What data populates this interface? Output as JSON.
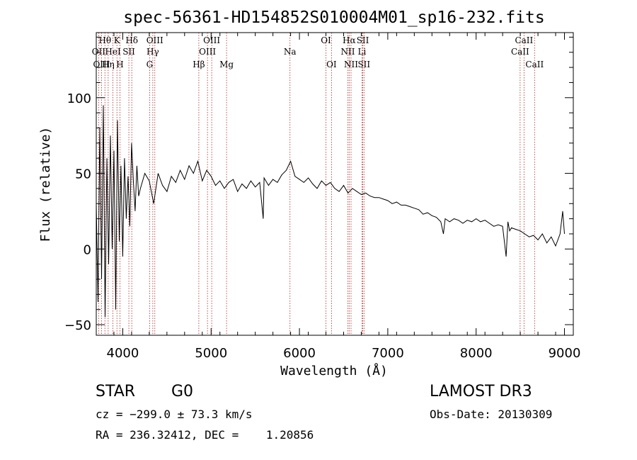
{
  "chart_data": {
    "type": "line",
    "title": "spec-56361-HD154852S010004M01_sp16-232.fits",
    "xlabel": "Wavelength (Å)",
    "ylabel": "Flux (relative)",
    "xlim": [
      3700,
      9100
    ],
    "ylim": [
      -57,
      143
    ],
    "xticks": [
      4000,
      5000,
      6000,
      7000,
      8000,
      9000
    ],
    "yticks": [
      -50,
      0,
      50,
      100
    ],
    "series": [
      {
        "name": "flux",
        "x": [
          3700,
          3720,
          3740,
          3760,
          3780,
          3800,
          3820,
          3840,
          3860,
          3880,
          3900,
          3920,
          3940,
          3960,
          3980,
          4000,
          4020,
          4040,
          4060,
          4080,
          4100,
          4120,
          4140,
          4160,
          4180,
          4200,
          4250,
          4300,
          4350,
          4400,
          4450,
          4500,
          4550,
          4600,
          4650,
          4700,
          4750,
          4800,
          4850,
          4900,
          4950,
          5000,
          5050,
          5100,
          5150,
          5200,
          5250,
          5300,
          5350,
          5400,
          5450,
          5500,
          5550,
          5590,
          5600,
          5650,
          5700,
          5750,
          5800,
          5850,
          5900,
          5950,
          6000,
          6050,
          6100,
          6150,
          6200,
          6250,
          6300,
          6350,
          6400,
          6450,
          6500,
          6550,
          6600,
          6650,
          6700,
          6750,
          6800,
          6850,
          6900,
          6950,
          7000,
          7050,
          7100,
          7150,
          7200,
          7250,
          7300,
          7350,
          7400,
          7450,
          7500,
          7550,
          7600,
          7630,
          7650,
          7700,
          7750,
          7800,
          7850,
          7900,
          7950,
          8000,
          8050,
          8100,
          8150,
          8200,
          8250,
          8300,
          8340,
          8360,
          8380,
          8400,
          8450,
          8500,
          8550,
          8600,
          8650,
          8700,
          8750,
          8800,
          8850,
          8900,
          8950,
          8980,
          9000
        ],
        "values": [
          30,
          -35,
          80,
          -20,
          95,
          -45,
          60,
          -10,
          75,
          0,
          65,
          -40,
          85,
          5,
          55,
          -5,
          60,
          20,
          48,
          15,
          70,
          45,
          25,
          55,
          35,
          40,
          50,
          45,
          30,
          50,
          42,
          38,
          48,
          44,
          52,
          46,
          55,
          50,
          58,
          45,
          52,
          48,
          42,
          45,
          40,
          44,
          46,
          38,
          43,
          40,
          45,
          41,
          44,
          20,
          47,
          42,
          46,
          44,
          49,
          52,
          58,
          48,
          46,
          44,
          47,
          43,
          40,
          45,
          42,
          44,
          40,
          38,
          42,
          37,
          40,
          38,
          36,
          37,
          35,
          34,
          34,
          33,
          32,
          30,
          31,
          29,
          29,
          28,
          27,
          26,
          23,
          24,
          22,
          21,
          18,
          10,
          20,
          18,
          20,
          19,
          17,
          19,
          18,
          20,
          18,
          19,
          17,
          15,
          16,
          15,
          -5,
          18,
          12,
          14,
          13,
          12,
          10,
          8,
          9,
          6,
          10,
          4,
          8,
          2,
          10,
          25,
          10
        ]
      }
    ],
    "spectral_lines": [
      {
        "label": "Hθ",
        "wl": 3798,
        "row": 1
      },
      {
        "label": "K",
        "wl": 3934,
        "row": 1
      },
      {
        "label": "Hδ",
        "wl": 4102,
        "row": 1
      },
      {
        "label": "OIII",
        "wl": 4363,
        "row": 1
      },
      {
        "label": "OIII",
        "wl": 5007,
        "row": 1
      },
      {
        "label": "OI",
        "wl": 6300,
        "row": 1
      },
      {
        "label": "Hα",
        "wl": 6563,
        "row": 1
      },
      {
        "label": "SII",
        "wl": 6717,
        "row": 1
      },
      {
        "label": "CaII",
        "wl": 8542,
        "row": 1
      },
      {
        "label": "OII",
        "wl": 3727,
        "row": 2
      },
      {
        "label": "HeI",
        "wl": 3889,
        "row": 2
      },
      {
        "label": "SII",
        "wl": 4069,
        "row": 2
      },
      {
        "label": "Hγ",
        "wl": 4340,
        "row": 2
      },
      {
        "label": "OIII",
        "wl": 4959,
        "row": 2
      },
      {
        "label": "Na",
        "wl": 5893,
        "row": 2
      },
      {
        "label": "NII",
        "wl": 6548,
        "row": 2
      },
      {
        "label": "Li",
        "wl": 6708,
        "row": 2
      },
      {
        "label": "CaII",
        "wl": 8498,
        "row": 2
      },
      {
        "label": "OIII",
        "wl": 3760,
        "row": 3
      },
      {
        "label": "Hη",
        "wl": 3835,
        "row": 3
      },
      {
        "label": "H",
        "wl": 3968,
        "row": 3
      },
      {
        "label": "G",
        "wl": 4304,
        "row": 3
      },
      {
        "label": "Hβ",
        "wl": 4861,
        "row": 3
      },
      {
        "label": "Mg",
        "wl": 5175,
        "row": 3
      },
      {
        "label": "OI",
        "wl": 6363,
        "row": 3
      },
      {
        "label": "NII",
        "wl": 6584,
        "row": 3
      },
      {
        "label": "SII",
        "wl": 6731,
        "row": 3
      },
      {
        "label": "CaII",
        "wl": 8662,
        "row": 3
      }
    ],
    "colors": {
      "spectrum": "#000000",
      "lines": "#b22222",
      "axes": "#000000"
    }
  },
  "footer": {
    "object_class": "STAR",
    "subclass": "G0",
    "survey": "LAMOST DR3",
    "cz": "cz = −299.0 ± 73.3 km/s",
    "obs_date": "Obs-Date: 20130309",
    "coords": "RA = 236.32412, DEC =    1.20856"
  }
}
